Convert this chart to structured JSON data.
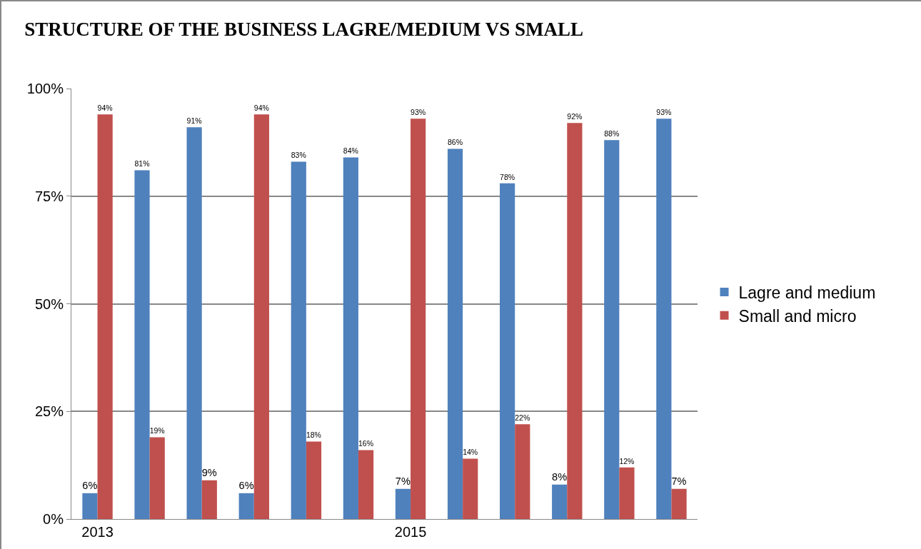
{
  "chart_data": {
    "type": "bar",
    "title": "STRUCTURE OF THE BUSINESS LAGRE/MEDIUM VS SMALL",
    "categories": [
      "2013",
      null,
      null,
      null,
      null,
      null,
      "2015",
      null,
      null,
      null,
      null,
      null
    ],
    "series": [
      {
        "name": "Lagre and medium",
        "color": "#4f81bd",
        "values": [
          6,
          81,
          91,
          6,
          83,
          84,
          7,
          86,
          78,
          8,
          88,
          93
        ],
        "value_labels": [
          "6%",
          "81%",
          "91%",
          "6%",
          "83%",
          "84%",
          "7%",
          "86%",
          "78%",
          "8%",
          "88%",
          "93%"
        ]
      },
      {
        "name": "Small and micro",
        "color": "#c0504d",
        "values": [
          94,
          19,
          9,
          94,
          18,
          16,
          93,
          14,
          22,
          92,
          12,
          7
        ],
        "value_labels": [
          "94%",
          "19%",
          "9%",
          "94%",
          "18%",
          "16%",
          "93%",
          "14%",
          "22%",
          "92%",
          "12%",
          "7%"
        ]
      }
    ],
    "ylim": [
      0,
      100
    ],
    "yticks": [
      {
        "value": 0,
        "label": "0%"
      },
      {
        "value": 25,
        "label": "25%"
      },
      {
        "value": 50,
        "label": "50%"
      },
      {
        "value": 75,
        "label": "75%"
      },
      {
        "value": 100,
        "label": "100%"
      }
    ],
    "grid": "y",
    "legend": "right"
  }
}
